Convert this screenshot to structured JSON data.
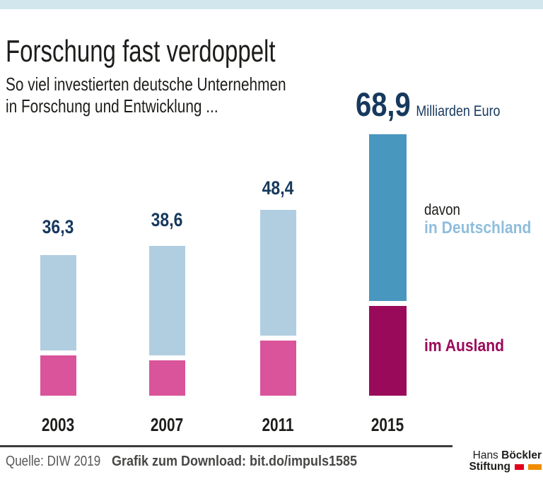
{
  "colors": {
    "accent_strip": "#d2e6ee",
    "bar_light_blue": "#b1cee1",
    "bar_pink": "#d9549a",
    "bar_dark_blue": "#4897be",
    "bar_dark_magenta": "#9a0a5a",
    "value_navy": "#16395d",
    "legend_light_blue": "#8fbedd",
    "legend_magenta": "#9a0a5a",
    "footer_gray": "#575756",
    "logo_red": "#e2001a",
    "logo_orange": "#f08c00"
  },
  "header": {
    "title": "Forschung fast verdoppelt",
    "subtitle_line1": "So viel investierten deutsche Unternehmen",
    "subtitle_line2": "in Forschung und Entwicklung ..."
  },
  "chart_data": {
    "type": "bar",
    "stacked": true,
    "categories": [
      "2003",
      "2007",
      "2011",
      "2015"
    ],
    "totals_labeled": [
      "36,3",
      "38,6",
      "48,4",
      "68,9"
    ],
    "totals_numeric": [
      36.3,
      38.6,
      48.4,
      68.9
    ],
    "unit": "Milliarden Euro",
    "series": [
      {
        "name": "in Deutschland",
        "values_estimated": [
          25.1,
          28.8,
          33.1,
          43.8
        ],
        "color_regular": "#b1cee1",
        "color_highlight": "#4897be"
      },
      {
        "name": "im Ausland",
        "values_estimated": [
          10.6,
          9.3,
          14.5,
          23.6
        ],
        "color_regular": "#d9549a",
        "color_highlight": "#9a0a5a"
      }
    ],
    "highlight_category": "2015",
    "legend_position": "right",
    "grid": false,
    "annotations": {
      "davon": "davon",
      "in_deutschland": "in Deutschland",
      "im_ausland": "im Ausland",
      "big_value": "68,9",
      "big_value_unit": "Milliarden Euro"
    }
  },
  "footer": {
    "source": "Quelle: DIW 2019",
    "download": "Grafik zum Download: bit.do/impuls1585",
    "logo_line1_regular": "Hans ",
    "logo_line1_bold": "Böckler",
    "logo_line2_bold": "Stiftung"
  }
}
